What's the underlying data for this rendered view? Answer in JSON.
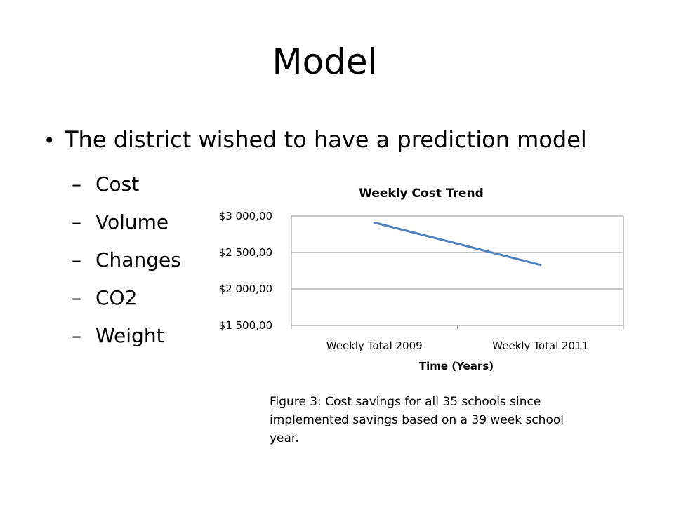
{
  "slide": {
    "title": "Model",
    "bullet": "The district wished to have a prediction model",
    "sub_items": [
      "Cost",
      "Volume",
      "Changes",
      "CO2",
      "Weight"
    ],
    "caption": "Figure 3: Cost savings for all 35 schools since implemented savings based on a 39 week school year."
  },
  "chart_data": {
    "type": "line",
    "title": "Weekly Cost Trend",
    "xlabel": "Time (Years)",
    "ylabel": "",
    "categories": [
      "Weekly Total 2009",
      "Weekly Total 2011"
    ],
    "series": [
      {
        "values": [
          2910,
          2330
        ],
        "color": "#4f81bd"
      }
    ],
    "ylim": [
      1500,
      3000
    ],
    "yticks": [
      {
        "value": 3000,
        "label": "$3 000,00"
      },
      {
        "value": 2500,
        "label": "$2 500,00"
      },
      {
        "value": 2000,
        "label": "$2 000,00"
      },
      {
        "value": 1500,
        "label": "$1 500,00"
      }
    ],
    "grid": true,
    "legend": "none"
  }
}
